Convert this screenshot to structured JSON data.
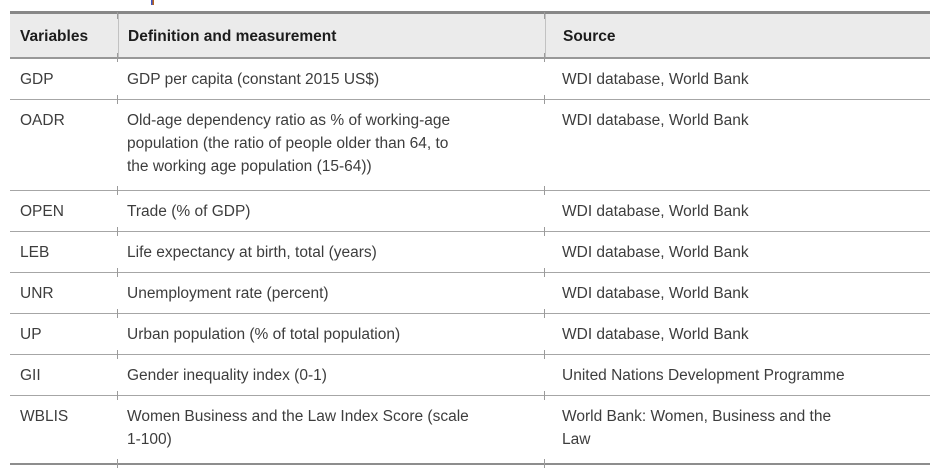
{
  "table": {
    "columns": [
      "Variables",
      "Definition and measurement",
      "Source"
    ],
    "rows": [
      {
        "variable": "GDP",
        "definition": "GDP per capita (constant 2015 US$)",
        "source": "WDI database, World Bank"
      },
      {
        "variable": "OADR",
        "definition": "Old-age dependency ratio as % of working-age\npopulation (the ratio of people older than 64, to\nthe working age population (15-64))",
        "source": "WDI database, World Bank"
      },
      {
        "variable": "OPEN",
        "definition": "Trade (% of GDP)",
        "source": "WDI database, World Bank"
      },
      {
        "variable": "LEB",
        "definition": "Life expectancy at birth, total (years)",
        "source": "WDI database, World Bank"
      },
      {
        "variable": "UNR",
        "definition": "Unemployment rate (percent)",
        "source": "WDI database, World Bank"
      },
      {
        "variable": "UP",
        "definition": "Urban population (% of total population)",
        "source": "WDI database, World Bank"
      },
      {
        "variable": "GII",
        "definition": "Gender inequality index (0-1)",
        "source": "United Nations Development Programme"
      },
      {
        "variable": "WBLIS",
        "definition": "Women Business and the Law Index Score (scale\n1-100)",
        "source": "World Bank: Women, Business and the\nLaw"
      }
    ],
    "style": {
      "header_background": "#ebebeb",
      "header_text_color": "#1c1c1c",
      "body_text_color": "#3d3d3d",
      "outer_border_color": "#878787",
      "row_separator_color": "#a6a6a6"
    }
  }
}
